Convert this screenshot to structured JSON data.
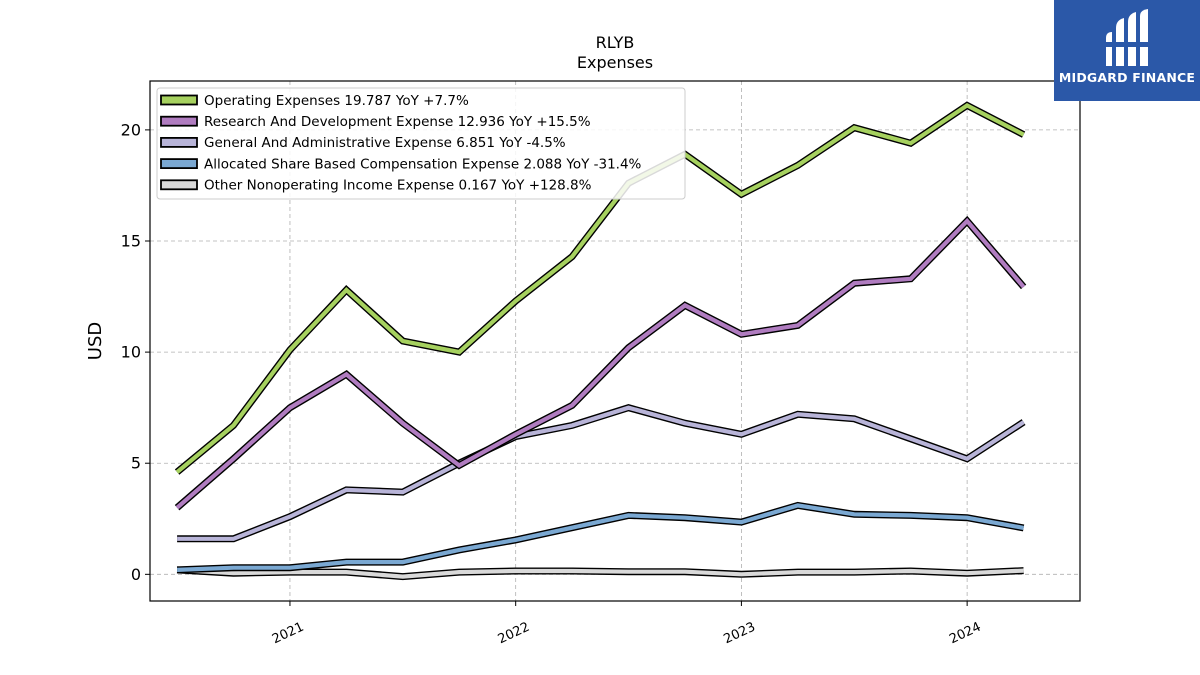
{
  "chart_data": {
    "type": "line",
    "title": "RLYB",
    "subtitle": "Expenses",
    "ylabel": "USD",
    "xlabel": "",
    "ylim": [
      -1.2,
      22.2
    ],
    "xlim": [
      2020.38,
      2024.5
    ],
    "yticks": [
      0,
      5,
      10,
      15,
      20
    ],
    "xticks": [
      "2021",
      "2022",
      "2023",
      "2024"
    ],
    "grid": true,
    "legend_position": "top-left",
    "x": [
      2020.5,
      2020.75,
      2021.0,
      2021.25,
      2021.5,
      2021.75,
      2022.0,
      2022.25,
      2022.5,
      2022.75,
      2023.0,
      2023.25,
      2023.5,
      2023.75,
      2024.0,
      2024.25
    ],
    "series": [
      {
        "name": "Operating Expenses",
        "legend": "Operating Expenses  19.787 YoY +7.7%",
        "color": "#a6d15f",
        "values": [
          4.6,
          6.7,
          10.1,
          12.8,
          10.5,
          10.0,
          12.3,
          14.3,
          17.6,
          18.9,
          17.1,
          18.4,
          20.1,
          19.4,
          21.1,
          19.787
        ]
      },
      {
        "name": "Research And Development Expense",
        "legend": "Research And Development Expense  12.936 YoY +15.5%",
        "color": "#b07cc0",
        "values": [
          3.0,
          5.2,
          7.5,
          9.0,
          6.8,
          4.9,
          6.3,
          7.6,
          10.2,
          12.1,
          10.8,
          11.2,
          13.1,
          13.3,
          15.9,
          12.936
        ]
      },
      {
        "name": "General And Administrative Expense",
        "legend": "General And Administrative Expense  6.851 YoY -4.5%",
        "color": "#b8b4d8",
        "values": [
          1.6,
          1.6,
          2.6,
          3.8,
          3.7,
          5.0,
          6.2,
          6.7,
          7.5,
          6.8,
          6.3,
          7.2,
          7.0,
          6.1,
          5.2,
          6.851
        ]
      },
      {
        "name": "Allocated Share Based Compensation Expense",
        "legend": "Allocated Share Based Compensation Expense  2.088 YoY -31.4%",
        "color": "#7aa8d2",
        "values": [
          0.2,
          0.3,
          0.3,
          0.55,
          0.55,
          1.1,
          1.55,
          2.1,
          2.65,
          2.55,
          2.35,
          3.1,
          2.7,
          2.65,
          2.55,
          2.088
        ]
      },
      {
        "name": "Other Nonoperating Income Expense",
        "legend": "Other Nonoperating Income Expense  0.167 YoY +128.8%",
        "color": "#d9d9d9",
        "values": [
          0.2,
          0.05,
          0.1,
          0.1,
          -0.1,
          0.1,
          0.15,
          0.15,
          0.12,
          0.12,
          0.0,
          0.1,
          0.1,
          0.15,
          0.05,
          0.167
        ]
      }
    ]
  },
  "brand": {
    "name": "MIDGARD FINANCE",
    "badge_color": "#2b58a8"
  }
}
